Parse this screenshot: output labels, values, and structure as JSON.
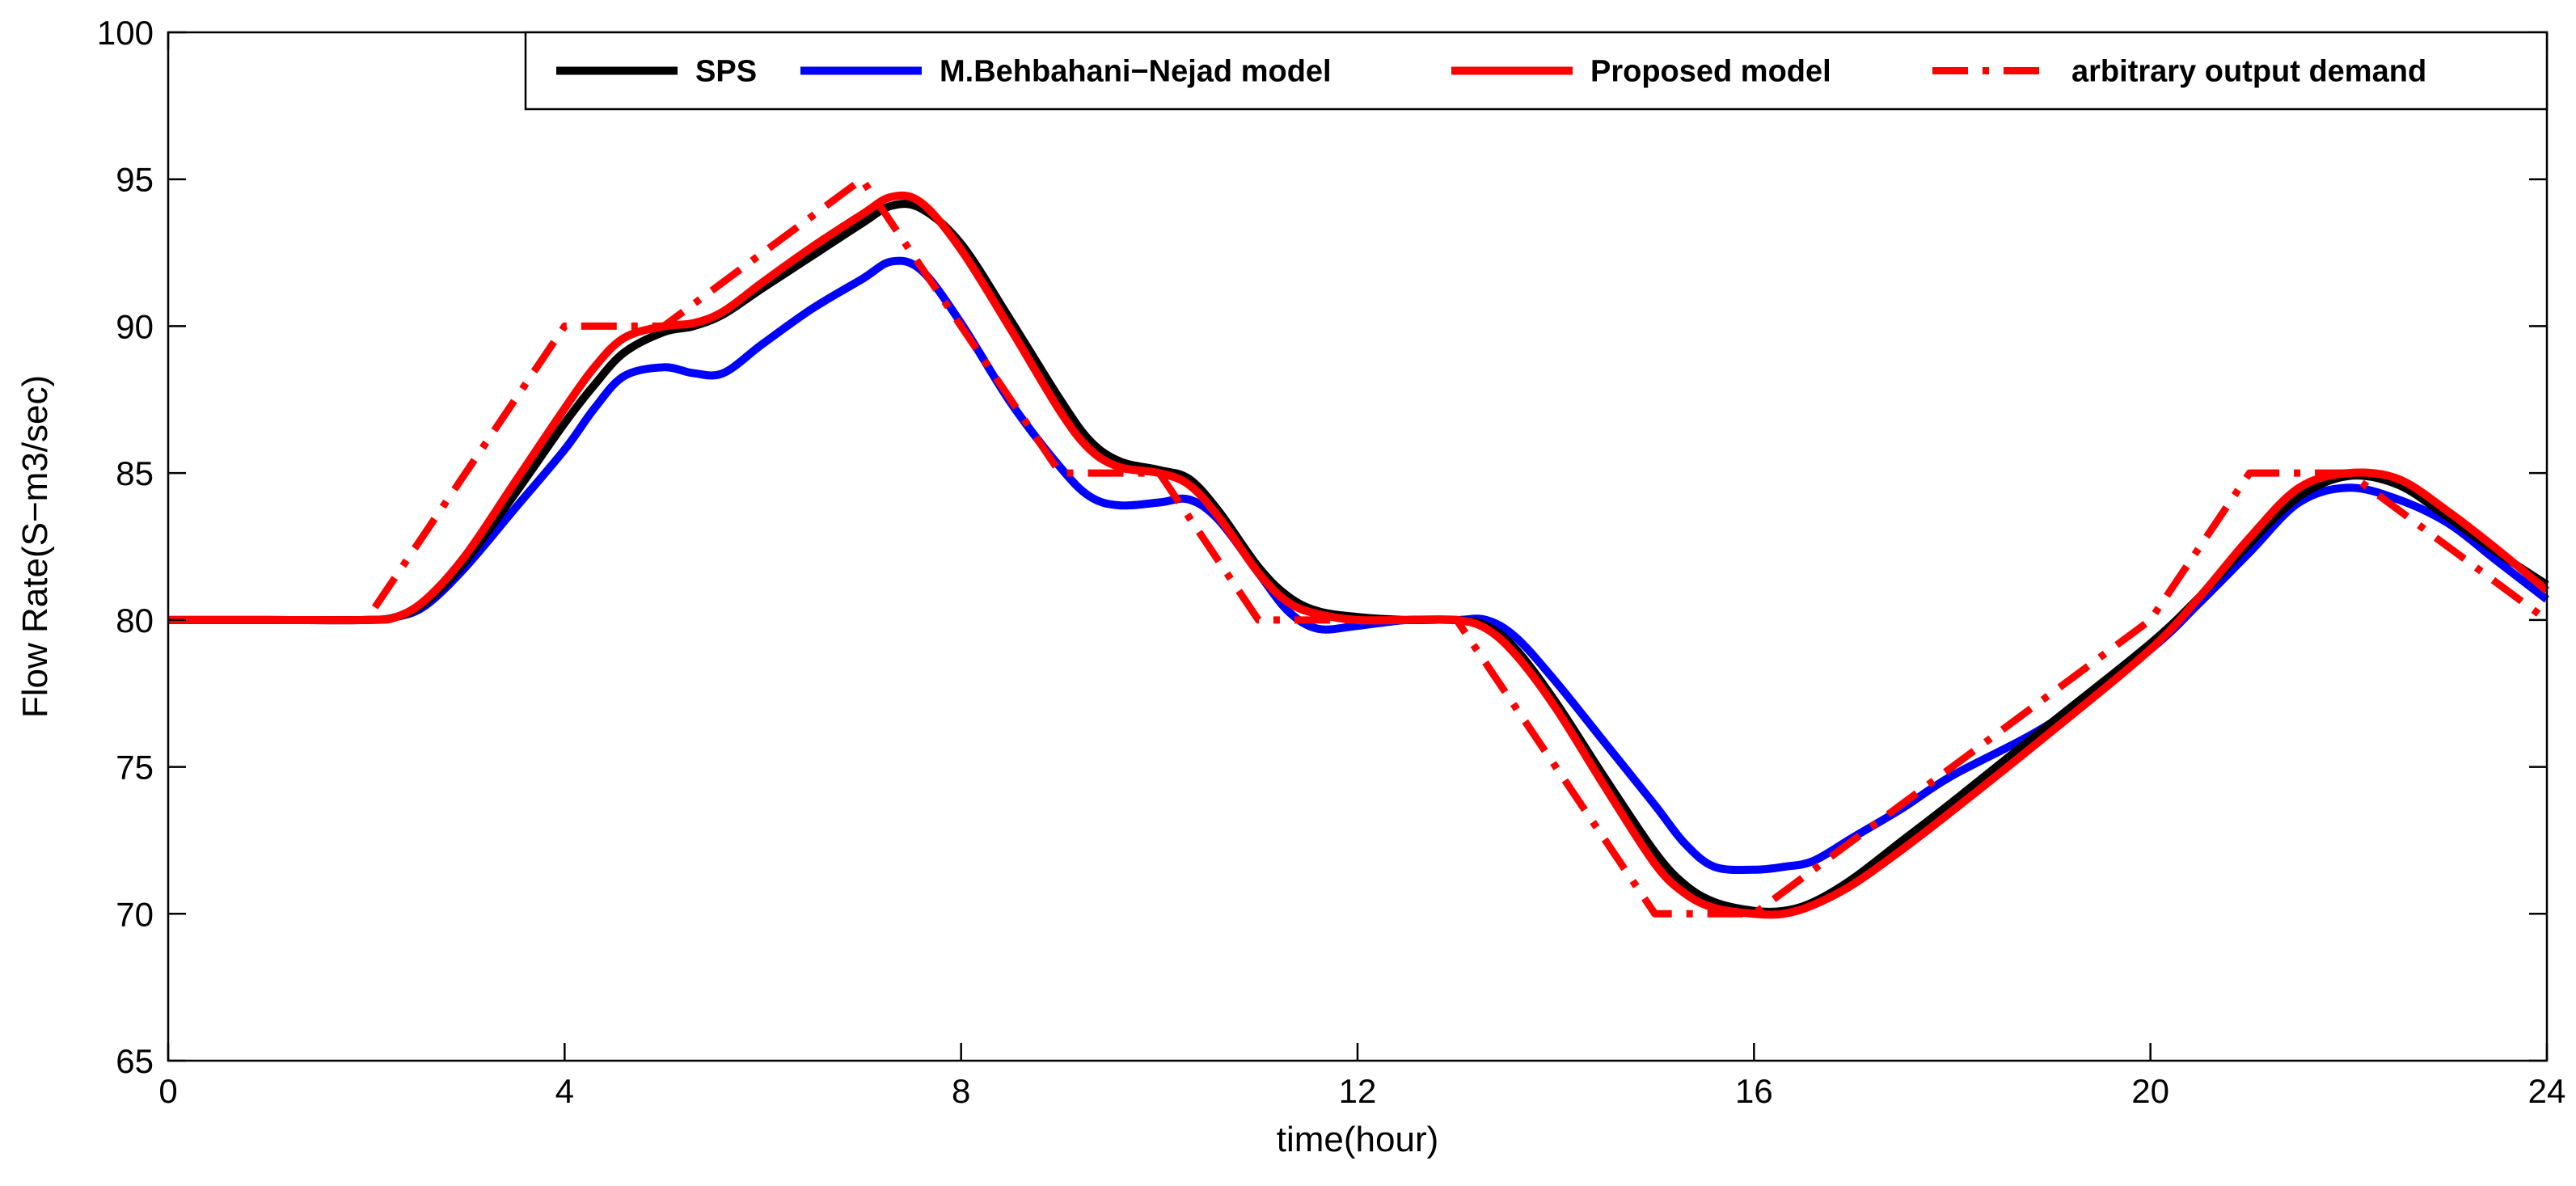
{
  "chart_data": {
    "type": "line",
    "title": "",
    "xlabel": "time(hour)",
    "ylabel": "Flow Rate(S−m3/sec)",
    "xlim": [
      0,
      24
    ],
    "ylim": [
      65,
      100
    ],
    "xticks": [
      0,
      4,
      8,
      12,
      16,
      20,
      24
    ],
    "yticks": [
      65,
      70,
      75,
      80,
      85,
      90,
      95,
      100
    ],
    "grid": false,
    "legend_position": "top",
    "series": [
      {
        "name": "SPS",
        "color": "#000000",
        "style": "solid",
        "x": [
          0,
          1,
          2,
          2.3,
          2.6,
          3,
          3.5,
          4,
          4.3,
          4.6,
          5,
          5.3,
          5.6,
          6,
          6.5,
          7,
          7.3,
          7.6,
          8,
          8.5,
          9,
          9.3,
          9.6,
          10,
          10.3,
          10.6,
          11,
          11.3,
          11.6,
          12,
          12.5,
          13,
          13.3,
          13.6,
          14,
          14.5,
          15,
          15.3,
          15.6,
          16,
          16.3,
          16.6,
          17,
          17.5,
          18,
          19,
          20,
          20.5,
          21,
          21.5,
          22,
          22.5,
          23,
          23.5,
          24
        ],
        "y": [
          80,
          80,
          80,
          80.1,
          80.6,
          82,
          84.3,
          86.7,
          88,
          89.1,
          89.8,
          90,
          90.4,
          91.3,
          92.4,
          93.5,
          94.1,
          94,
          92.8,
          90.2,
          87.5,
          86.1,
          85.4,
          85.1,
          84.8,
          83.7,
          81.8,
          80.8,
          80.3,
          80.1,
          80,
          80,
          79.8,
          79,
          77.2,
          74.6,
          72.1,
          71,
          70.4,
          70.1,
          70.1,
          70.4,
          71.2,
          72.5,
          73.8,
          76.5,
          79.2,
          80.8,
          82.6,
          84.2,
          84.9,
          84.6,
          83.5,
          82.3,
          81.2
        ]
      },
      {
        "name": "M.Behbahani−Nejad model",
        "color": "#0000ff",
        "style": "solid",
        "x": [
          0,
          1,
          2,
          2.3,
          2.6,
          3,
          3.5,
          4,
          4.3,
          4.6,
          5,
          5.3,
          5.6,
          6,
          6.5,
          7,
          7.3,
          7.6,
          8,
          8.5,
          9,
          9.3,
          9.6,
          10,
          10.3,
          10.6,
          11,
          11.3,
          11.6,
          12,
          12.5,
          13,
          13.3,
          13.6,
          14,
          14.5,
          15,
          15.3,
          15.6,
          16,
          16.3,
          16.6,
          17,
          17.5,
          18,
          19,
          20,
          20.5,
          21,
          21.5,
          22,
          22.5,
          23,
          23.5,
          24
        ],
        "y": [
          80,
          80,
          80,
          80.1,
          80.5,
          81.8,
          83.8,
          85.8,
          87.2,
          88.3,
          88.6,
          88.4,
          88.4,
          89.4,
          90.6,
          91.6,
          92.2,
          91.9,
          90.1,
          87.4,
          85.2,
          84.2,
          83.9,
          84,
          84.1,
          83.4,
          81.6,
          80.3,
          79.7,
          79.8,
          80,
          80,
          80,
          79.4,
          77.9,
          75.8,
          73.7,
          72.4,
          71.6,
          71.5,
          71.6,
          71.8,
          72.6,
          73.6,
          74.7,
          76.5,
          79,
          80.6,
          82.3,
          84,
          84.5,
          84.1,
          83.3,
          82,
          80.7
        ]
      },
      {
        "name": "Proposed model",
        "color": "#ff0000",
        "style": "solid",
        "x": [
          0,
          1,
          2,
          2.3,
          2.6,
          3,
          3.5,
          4,
          4.3,
          4.6,
          5,
          5.3,
          5.6,
          6,
          6.5,
          7,
          7.3,
          7.6,
          8,
          8.5,
          9,
          9.3,
          9.6,
          10,
          10.3,
          10.6,
          11,
          11.3,
          11.6,
          12,
          12.5,
          13,
          13.3,
          13.6,
          14,
          14.5,
          15,
          15.3,
          15.6,
          16,
          16.3,
          16.6,
          17,
          17.5,
          18,
          19,
          20,
          20.5,
          21,
          21.5,
          22,
          22.5,
          23,
          23.5,
          24
        ],
        "y": [
          80,
          80,
          80,
          80.1,
          80.7,
          82.2,
          84.7,
          87.2,
          88.6,
          89.6,
          90,
          90.1,
          90.5,
          91.5,
          92.7,
          93.8,
          94.4,
          94.2,
          92.6,
          89.9,
          87.1,
          85.8,
          85.2,
          85,
          84.6,
          83.5,
          81.6,
          80.6,
          80.2,
          80,
          80,
          80,
          79.7,
          78.8,
          77,
          74.3,
          71.7,
          70.7,
          70.2,
          70,
          70,
          70.3,
          71,
          72.2,
          73.5,
          76.2,
          79,
          80.8,
          82.8,
          84.5,
          85,
          84.8,
          83.7,
          82.4,
          81
        ]
      },
      {
        "name": "arbitrary output demand",
        "color": "#ff0000",
        "style": "dash-dot",
        "x": [
          0,
          2,
          4,
          5,
          7,
          9,
          10,
          11,
          13,
          15,
          16,
          20,
          21,
          22,
          24
        ],
        "y": [
          80,
          80,
          90,
          90,
          95,
          85,
          85,
          80,
          80,
          70,
          70,
          80,
          85,
          85,
          80
        ]
      }
    ]
  }
}
